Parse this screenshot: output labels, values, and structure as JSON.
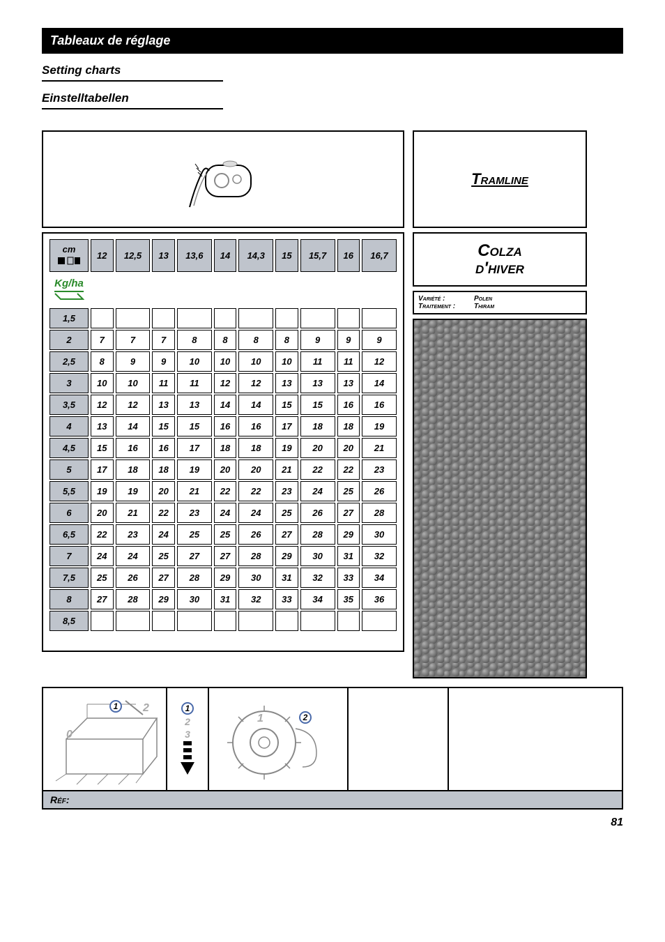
{
  "headings": {
    "fr": "Tableaux de réglage",
    "en": "Setting charts",
    "de": "Einstelltabellen"
  },
  "tramline": "Tramline",
  "crop": {
    "line1": "Colza",
    "line2": "d'hiver"
  },
  "variety": {
    "label1": "Variété :",
    "value1": "Polen",
    "label2": "Traitement :",
    "value2": "Thiram"
  },
  "ref_label": "Réf:",
  "page_number": "81",
  "table": {
    "corner_label": "cm",
    "kgha_label": "Kg/ha",
    "columns": [
      "12",
      "12,5",
      "13",
      "13,6",
      "14",
      "14,3",
      "15",
      "15,7",
      "16",
      "16,7"
    ],
    "row_labels": [
      "1,5",
      "2",
      "2,5",
      "3",
      "3,5",
      "4",
      "4,5",
      "5",
      "5,5",
      "6",
      "6,5",
      "7",
      "7,5",
      "8",
      "8,5"
    ],
    "rows": [
      [
        "",
        "",
        "",
        "",
        "",
        "",
        "",
        "",
        "",
        ""
      ],
      [
        "7",
        "7",
        "7",
        "8",
        "8",
        "8",
        "8",
        "9",
        "9",
        "9"
      ],
      [
        "8",
        "9",
        "9",
        "10",
        "10",
        "10",
        "10",
        "11",
        "11",
        "12"
      ],
      [
        "10",
        "10",
        "11",
        "11",
        "12",
        "12",
        "13",
        "13",
        "13",
        "14"
      ],
      [
        "12",
        "12",
        "13",
        "13",
        "14",
        "14",
        "15",
        "15",
        "16",
        "16"
      ],
      [
        "13",
        "14",
        "15",
        "15",
        "16",
        "16",
        "17",
        "18",
        "18",
        "19"
      ],
      [
        "15",
        "16",
        "16",
        "17",
        "18",
        "18",
        "19",
        "20",
        "20",
        "21"
      ],
      [
        "17",
        "18",
        "18",
        "19",
        "20",
        "20",
        "21",
        "22",
        "22",
        "23"
      ],
      [
        "19",
        "19",
        "20",
        "21",
        "22",
        "22",
        "23",
        "24",
        "25",
        "26"
      ],
      [
        "20",
        "21",
        "22",
        "23",
        "24",
        "24",
        "25",
        "26",
        "27",
        "28"
      ],
      [
        "22",
        "23",
        "24",
        "25",
        "25",
        "26",
        "27",
        "28",
        "29",
        "30"
      ],
      [
        "24",
        "24",
        "25",
        "27",
        "27",
        "28",
        "29",
        "30",
        "31",
        "32"
      ],
      [
        "25",
        "26",
        "27",
        "28",
        "29",
        "30",
        "31",
        "32",
        "33",
        "34"
      ],
      [
        "27",
        "28",
        "29",
        "30",
        "31",
        "32",
        "33",
        "34",
        "35",
        "36"
      ],
      [
        "",
        "",
        "",
        "",
        "",
        "",
        "",
        "",
        "",
        ""
      ]
    ]
  },
  "diagram1": {
    "zero": "0",
    "circ": "1",
    "grey": "2"
  },
  "diagram2": {
    "circ": "1",
    "g2": "2",
    "g3": "3"
  },
  "diagram3": {
    "grey": "1",
    "circ": "2"
  },
  "colors": {
    "header_bg": "#bfc4cc",
    "green": "#2a8a2a",
    "circle_border": "#4a6aaa"
  }
}
